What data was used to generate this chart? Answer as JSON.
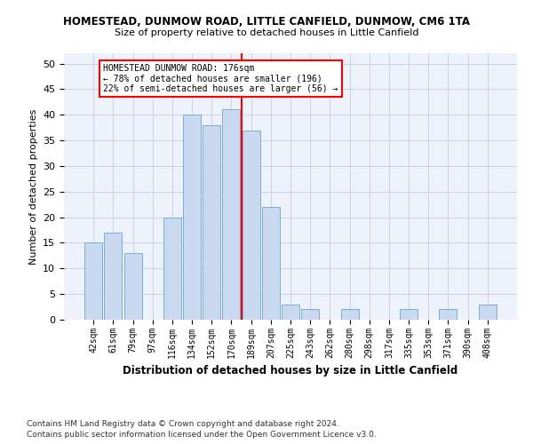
{
  "title": "HOMESTEAD, DUNMOW ROAD, LITTLE CANFIELD, DUNMOW, CM6 1TA",
  "subtitle": "Size of property relative to detached houses in Little Canfield",
  "xlabel": "Distribution of detached houses by size in Little Canfield",
  "ylabel": "Number of detached properties",
  "categories": [
    "42sqm",
    "61sqm",
    "79sqm",
    "97sqm",
    "116sqm",
    "134sqm",
    "152sqm",
    "170sqm",
    "189sqm",
    "207sqm",
    "225sqm",
    "243sqm",
    "262sqm",
    "280sqm",
    "298sqm",
    "317sqm",
    "335sqm",
    "353sqm",
    "371sqm",
    "390sqm",
    "408sqm"
  ],
  "values": [
    15,
    17,
    13,
    0,
    20,
    40,
    38,
    41,
    37,
    22,
    3,
    2,
    0,
    2,
    0,
    0,
    2,
    0,
    2,
    0,
    3
  ],
  "bar_color": "#c9d9f0",
  "bar_edge_color": "#7bafd4",
  "vline_color": "red",
  "annotation_title": "HOMESTEAD DUNMOW ROAD: 176sqm",
  "annotation_line2": "← 78% of detached houses are smaller (196)",
  "annotation_line3": "22% of semi-detached houses are larger (56) →",
  "background_color": "#eef2fb",
  "grid_color": "#c8d4e8",
  "ylim": [
    0,
    52
  ],
  "yticks": [
    0,
    5,
    10,
    15,
    20,
    25,
    30,
    35,
    40,
    45,
    50
  ],
  "footer_line1": "Contains HM Land Registry data © Crown copyright and database right 2024.",
  "footer_line2": "Contains public sector information licensed under the Open Government Licence v3.0."
}
